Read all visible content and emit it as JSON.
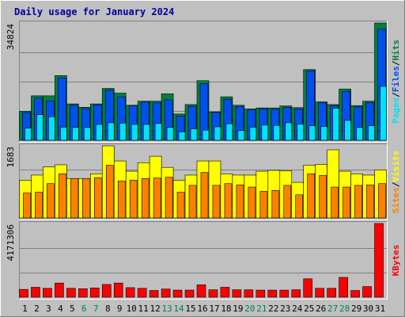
{
  "chart_data": {
    "type": "bar",
    "title": "Daily usage for January 2024",
    "categories": [
      "1",
      "2",
      "3",
      "4",
      "5",
      "6",
      "7",
      "8",
      "9",
      "10",
      "11",
      "12",
      "13",
      "14",
      "15",
      "16",
      "17",
      "18",
      "19",
      "20",
      "21",
      "22",
      "23",
      "24",
      "25",
      "26",
      "27",
      "28",
      "29",
      "30",
      "31"
    ],
    "weekend_days": [
      "6",
      "7",
      "13",
      "14",
      "20",
      "21",
      "27",
      "28"
    ],
    "panels": [
      {
        "name": "hits-files-pages",
        "max_label": "34824",
        "ylim": [
          0,
          34824
        ],
        "legend": [
          {
            "text": "Pages",
            "color": "#00e0ff"
          },
          {
            "text": "/",
            "color": "#000000"
          },
          {
            "text": "Files",
            "color": "#0050f0"
          },
          {
            "text": "/",
            "color": "#000000"
          },
          {
            "text": "Hits",
            "color": "#008040"
          }
        ],
        "series": [
          {
            "name": "Hits",
            "color": "#008040",
            "values": [
              8600,
              13200,
              13200,
              19200,
              10800,
              9800,
              10800,
              15400,
              14000,
              10400,
              11600,
              11600,
              13800,
              7800,
              10600,
              17700,
              8400,
              12900,
              10400,
              9300,
              9600,
              9600,
              10200,
              9700,
              21000,
              11400,
              10600,
              15200,
              10300,
              11600,
              34824
            ]
          },
          {
            "name": "Files",
            "color": "#0050f0",
            "values": [
              8200,
              12500,
              11700,
              18500,
              10400,
              9400,
              10500,
              14900,
              12900,
              10200,
              11300,
              11100,
              12000,
              7200,
              10100,
              16800,
              8300,
              12200,
              10000,
              9000,
              9300,
              9200,
              9800,
              9300,
              20600,
              11100,
              10300,
              14500,
              9900,
              11200,
              33000
            ]
          },
          {
            "name": "Pages",
            "color": "#00e0ff",
            "values": [
              3600,
              7600,
              7000,
              3900,
              3800,
              3800,
              4700,
              5200,
              5100,
              4700,
              4700,
              5000,
              3800,
              2500,
              3400,
              3000,
              4000,
              4900,
              2900,
              3900,
              4500,
              4400,
              5200,
              4800,
              4300,
              4100,
              9500,
              5900,
              3800,
              4300,
              16000
            ]
          }
        ]
      },
      {
        "name": "visits-sites",
        "max_label": "1683",
        "ylim": [
          0,
          1683
        ],
        "legend": [
          {
            "text": "Sites",
            "color": "#ff8000"
          },
          {
            "text": "/",
            "color": "#000000"
          },
          {
            "text": "Visits",
            "color": "#ffff00"
          }
        ],
        "series": [
          {
            "name": "Visits",
            "color": "#ffff00",
            "values": [
              880,
              1000,
              1190,
              1240,
              920,
              920,
              1030,
              1683,
              1330,
              1090,
              1290,
              1440,
              1180,
              880,
              1000,
              1330,
              1330,
              1030,
              1000,
              1000,
              1090,
              1110,
              1100,
              830,
              1230,
              1250,
              1590,
              1090,
              1030,
              1000,
              1120
            ]
          },
          {
            "name": "Sites",
            "color": "#ff8000",
            "values": [
              580,
              600,
              800,
              1030,
              920,
              920,
              940,
              1230,
              860,
              880,
              920,
              930,
              950,
              600,
              760,
              1060,
              760,
              800,
              770,
              720,
              620,
              640,
              760,
              540,
              1030,
              990,
              720,
              720,
              760,
              770,
              800
            ]
          }
        ]
      },
      {
        "name": "kbytes",
        "max_label": "4171306",
        "ylim": [
          0,
          4171306
        ],
        "legend": [
          {
            "text": "KBytes",
            "color": "#ff0000"
          }
        ],
        "series": [
          {
            "name": "KBytes",
            "color": "#ff0000",
            "values": [
              440000,
              560000,
              500000,
              800000,
              500000,
              480000,
              520000,
              720000,
              800000,
              540000,
              500000,
              380000,
              460000,
              400000,
              400000,
              700000,
              420000,
              560000,
              420000,
              420000,
              400000,
              400000,
              400000,
              420000,
              1040000,
              500000,
              500000,
              1120000,
              380000,
              600000,
              4171306
            ]
          }
        ]
      }
    ]
  }
}
